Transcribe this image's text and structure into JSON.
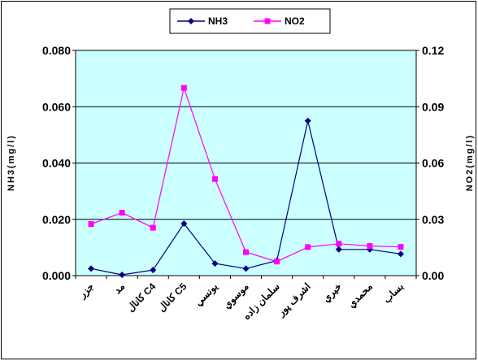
{
  "chart_data": {
    "type": "line",
    "categories": [
      "جزر",
      "مد",
      "كانال C4",
      "كانال C5",
      "يونسي",
      "موسوي",
      "سلمان زاده",
      "اشرف پور",
      "خيري",
      "محمدي",
      "بساب"
    ],
    "series": [
      {
        "name": "NH3",
        "axis": "left",
        "color": "#000080",
        "marker": "diamond",
        "values": [
          0.0025,
          0.0003,
          0.002,
          0.0185,
          0.0043,
          0.0025,
          0.0053,
          0.055,
          0.0093,
          0.0093,
          0.0077
        ]
      },
      {
        "name": "NO2",
        "axis": "right",
        "color": "#ff00ff",
        "marker": "square",
        "values": [
          0.0275,
          0.0335,
          0.0255,
          0.1,
          0.0515,
          0.0125,
          0.0075,
          0.0152,
          0.017,
          0.0158,
          0.0153
        ]
      }
    ],
    "y_left": {
      "label": "NH3(mg/l)",
      "ylim": [
        0,
        0.08
      ],
      "ticks": [
        "0.000",
        "0.020",
        "0.040",
        "0.060",
        "0.080"
      ]
    },
    "y_right": {
      "label": "NO2(mg/l)",
      "ylim": [
        0,
        0.12
      ],
      "ticks": [
        "0.00",
        "0.03",
        "0.06",
        "0.09",
        "0.12"
      ]
    },
    "grid": true,
    "plot_background": "#ccffff",
    "legend": "top-center"
  }
}
